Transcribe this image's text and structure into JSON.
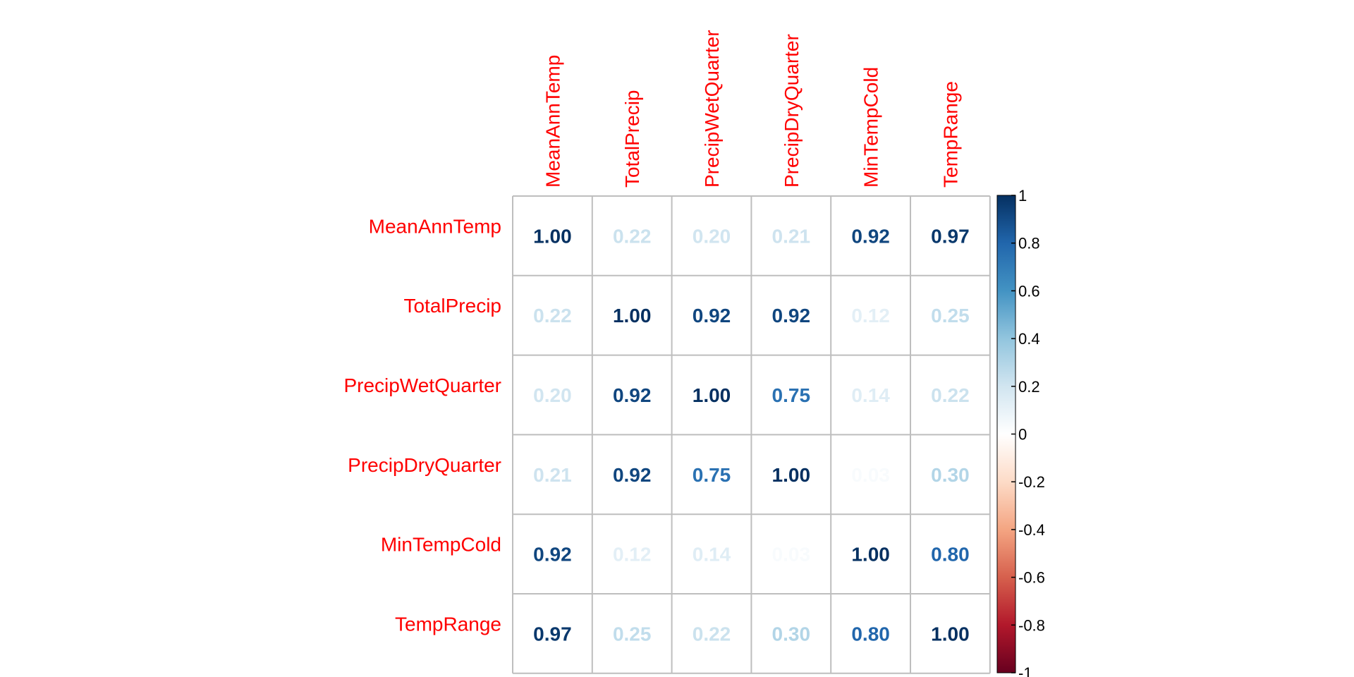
{
  "chart_data": {
    "type": "heatmap",
    "variables": [
      "MeanAnnTemp",
      "TotalPrecip",
      "PrecipWetQuarter",
      "PrecipDryQuarter",
      "MinTempCold",
      "TempRange"
    ],
    "matrix": [
      [
        1.0,
        0.22,
        0.2,
        0.21,
        0.92,
        0.97
      ],
      [
        0.22,
        1.0,
        0.92,
        0.92,
        0.12,
        0.25
      ],
      [
        0.2,
        0.92,
        1.0,
        0.75,
        0.14,
        0.22
      ],
      [
        0.21,
        0.92,
        0.75,
        1.0,
        0.03,
        0.3
      ],
      [
        0.92,
        0.12,
        0.14,
        0.03,
        1.0,
        0.8
      ],
      [
        0.97,
        0.25,
        0.22,
        0.3,
        0.8,
        1.0
      ]
    ],
    "value_labels": [
      [
        "1.00",
        "0.22",
        "0.20",
        "0.21",
        "0.92",
        "0.97"
      ],
      [
        "0.22",
        "1.00",
        "0.92",
        "0.92",
        "0.12",
        "0.25"
      ],
      [
        "0.20",
        "0.92",
        "1.00",
        "0.75",
        "0.14",
        "0.22"
      ],
      [
        "0.21",
        "0.92",
        "0.75",
        "1.00",
        "0.03",
        "0.30"
      ],
      [
        "0.92",
        "0.12",
        "0.14",
        "0.03",
        "1.00",
        "0.80"
      ],
      [
        "0.97",
        "0.25",
        "0.22",
        "0.30",
        "0.80",
        "1.00"
      ]
    ],
    "color_scale": {
      "range": [
        -1,
        1
      ],
      "ticks": [
        1,
        0.8,
        0.6,
        0.4,
        0.2,
        0,
        -0.2,
        -0.4,
        -0.6,
        -0.8,
        -1
      ],
      "tick_labels": [
        "1",
        "0.8",
        "0.6",
        "0.4",
        "0.2",
        "0",
        "-0.2",
        "-0.4",
        "-0.6",
        "-0.8",
        "-1"
      ],
      "stops": [
        {
          "value": -1.0,
          "color": "#67001F"
        },
        {
          "value": -0.8,
          "color": "#B2182B"
        },
        {
          "value": -0.6,
          "color": "#D6604D"
        },
        {
          "value": -0.4,
          "color": "#F4A582"
        },
        {
          "value": -0.2,
          "color": "#FDDBC7"
        },
        {
          "value": 0.0,
          "color": "#FFFFFF"
        },
        {
          "value": 0.2,
          "color": "#D1E5F0"
        },
        {
          "value": 0.4,
          "color": "#92C5DE"
        },
        {
          "value": 0.6,
          "color": "#4393C3"
        },
        {
          "value": 0.8,
          "color": "#2166AC"
        },
        {
          "value": 1.0,
          "color": "#053061"
        }
      ]
    },
    "label_color": "#FF0000",
    "grid_color": "#BEBEBE",
    "legend_position": "right"
  }
}
